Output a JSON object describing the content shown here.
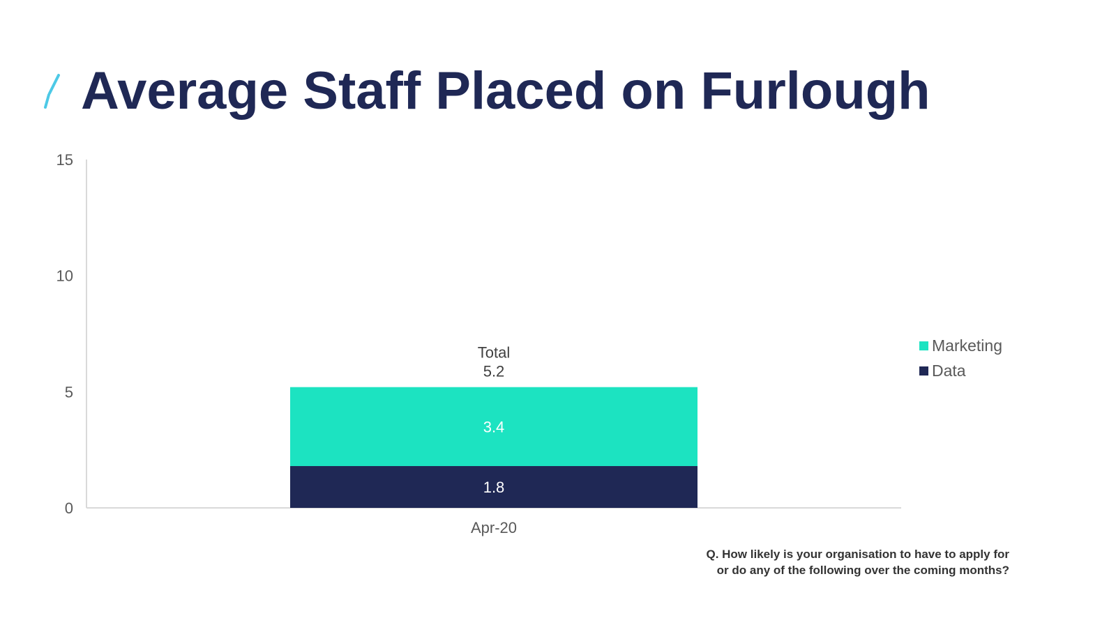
{
  "title": "Average Staff Placed on Furlough",
  "colors": {
    "title": "#1f2855",
    "accent": "#4dc9e6",
    "marketing": "#1ce3c1",
    "data": "#1f2855"
  },
  "chart_data": {
    "type": "bar",
    "stacked": true,
    "categories": [
      "Apr-20"
    ],
    "series": [
      {
        "name": "Data",
        "values": [
          1.8
        ],
        "color": "#1f2855"
      },
      {
        "name": "Marketing",
        "values": [
          3.4
        ],
        "color": "#1ce3c1"
      }
    ],
    "totals": [
      5.2
    ],
    "total_label": "Total",
    "ylim": [
      0,
      15
    ],
    "yticks": [
      "0",
      "5",
      "10",
      "15"
    ],
    "grid": false,
    "legend": {
      "position": "right",
      "entries": [
        "Marketing",
        "Data"
      ]
    }
  },
  "footnote": {
    "line1": "Q. How likely is your organisation to have to apply for",
    "line2": "or do any of the following over the coming months?"
  }
}
